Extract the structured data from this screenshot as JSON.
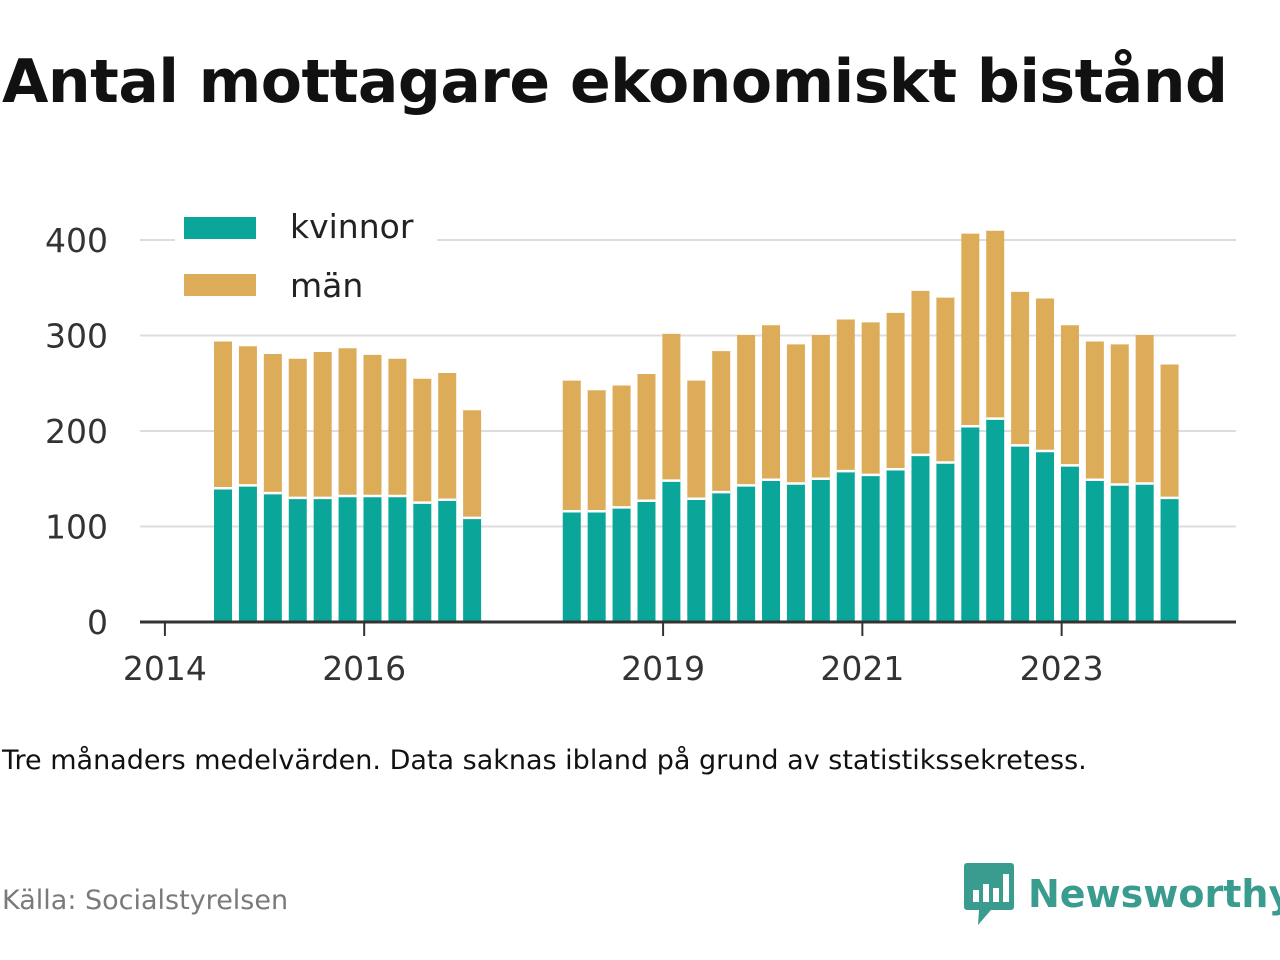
{
  "title": "Antal mottagare ekonomiskt bistånd",
  "note": "Tre månaders medelvärden. Data saknas ibland på grund av statistikssekretess.",
  "source": "Källa: Socialstyrelsen",
  "brand": {
    "name": "Newsworthy",
    "icon": "newsworthy-logo-icon"
  },
  "colors": {
    "kvinnor": "#0aa69a",
    "man": "#ddac58",
    "grid": "#dddddd",
    "axis": "#333333"
  },
  "chart_data": {
    "type": "bar",
    "stacked": true,
    "legend_position": "top-left",
    "grid": true,
    "ylim": [
      0,
      400
    ],
    "yticks": [
      "0",
      "100",
      "200",
      "300",
      "400"
    ],
    "xticks": [
      "2014",
      "2016",
      "2019",
      "2021",
      "2023"
    ],
    "x_range": [
      "2013-10",
      "2024-10"
    ],
    "x_unit": "quarter",
    "x": [
      "2014-07",
      "2014-10",
      "2015-01",
      "2015-04",
      "2015-07",
      "2015-10",
      "2016-01",
      "2016-04",
      "2016-07",
      "2016-10",
      "2017-01",
      "2018-01",
      "2018-04",
      "2018-07",
      "2018-10",
      "2019-01",
      "2019-04",
      "2019-07",
      "2019-10",
      "2020-01",
      "2020-04",
      "2020-07",
      "2020-10",
      "2021-01",
      "2021-04",
      "2021-07",
      "2021-10",
      "2022-01",
      "2022-04",
      "2022-07",
      "2022-10",
      "2023-01",
      "2023-04",
      "2023-07",
      "2023-10",
      "2024-01"
    ],
    "series": [
      {
        "name": "kvinnor",
        "color": "#0aa69a",
        "values": [
          140,
          143,
          135,
          130,
          130,
          132,
          132,
          132,
          125,
          128,
          109,
          116,
          116,
          120,
          127,
          148,
          129,
          136,
          143,
          149,
          145,
          150,
          158,
          154,
          160,
          175,
          167,
          205,
          213,
          185,
          179,
          164,
          149,
          144,
          145,
          130
        ]
      },
      {
        "name": "män",
        "color": "#ddac58",
        "values": [
          155,
          147,
          147,
          147,
          154,
          156,
          149,
          145,
          131,
          134,
          114,
          138,
          128,
          129,
          134,
          155,
          125,
          149,
          159,
          163,
          147,
          152,
          160,
          161,
          165,
          173,
          174,
          203,
          198,
          162,
          161,
          148,
          146,
          148,
          157,
          141
        ]
      }
    ]
  }
}
